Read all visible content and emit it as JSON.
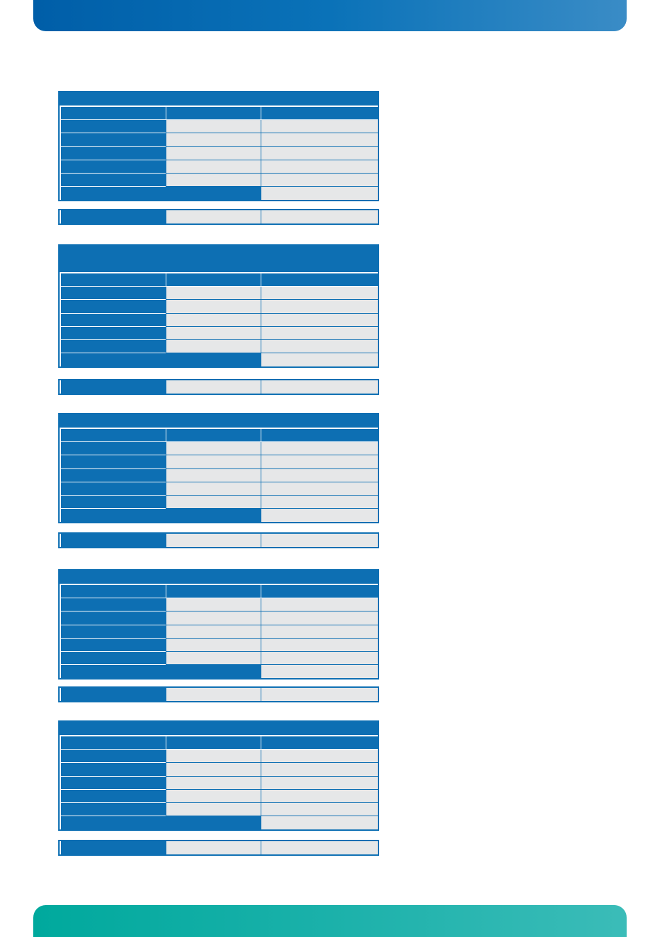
{
  "tables": [
    {
      "title": "",
      "header": [
        "",
        "",
        ""
      ],
      "rows": [
        [
          "",
          "",
          ""
        ],
        [
          "",
          "",
          ""
        ],
        [
          "",
          "",
          ""
        ],
        [
          "",
          "",
          ""
        ],
        [
          "",
          "",
          ""
        ]
      ],
      "total": [
        "",
        ""
      ],
      "summary": [
        "",
        "",
        ""
      ]
    },
    {
      "title": "",
      "header": [
        "",
        "",
        ""
      ],
      "rows": [
        [
          "",
          "",
          ""
        ],
        [
          "",
          "",
          ""
        ],
        [
          "",
          "",
          ""
        ],
        [
          "",
          "",
          ""
        ],
        [
          "",
          "",
          ""
        ]
      ],
      "total": [
        "",
        ""
      ],
      "summary": [
        "",
        "",
        ""
      ]
    },
    {
      "title": "",
      "header": [
        "",
        "",
        ""
      ],
      "rows": [
        [
          "",
          "",
          ""
        ],
        [
          "",
          "",
          ""
        ],
        [
          "",
          "",
          ""
        ],
        [
          "",
          "",
          ""
        ],
        [
          "",
          "",
          ""
        ]
      ],
      "total": [
        "",
        ""
      ],
      "summary": [
        "",
        "",
        ""
      ]
    },
    {
      "title": "",
      "header": [
        "",
        "",
        ""
      ],
      "rows": [
        [
          "",
          "",
          ""
        ],
        [
          "",
          "",
          ""
        ],
        [
          "",
          "",
          ""
        ],
        [
          "",
          "",
          ""
        ],
        [
          "",
          "",
          ""
        ]
      ],
      "total": [
        "",
        ""
      ],
      "summary": [
        "",
        "",
        ""
      ]
    },
    {
      "title": "",
      "header": [
        "",
        "",
        ""
      ],
      "rows": [
        [
          "",
          "",
          ""
        ],
        [
          "",
          "",
          ""
        ],
        [
          "",
          "",
          ""
        ],
        [
          "",
          "",
          ""
        ],
        [
          "",
          "",
          ""
        ]
      ],
      "total": [
        "",
        ""
      ],
      "summary": [
        "",
        "",
        ""
      ]
    }
  ],
  "colors": {
    "header_blue": "#0d6fb3",
    "cell_gray": "#e6e7e8",
    "footer_teal": "#1bb1aa"
  }
}
